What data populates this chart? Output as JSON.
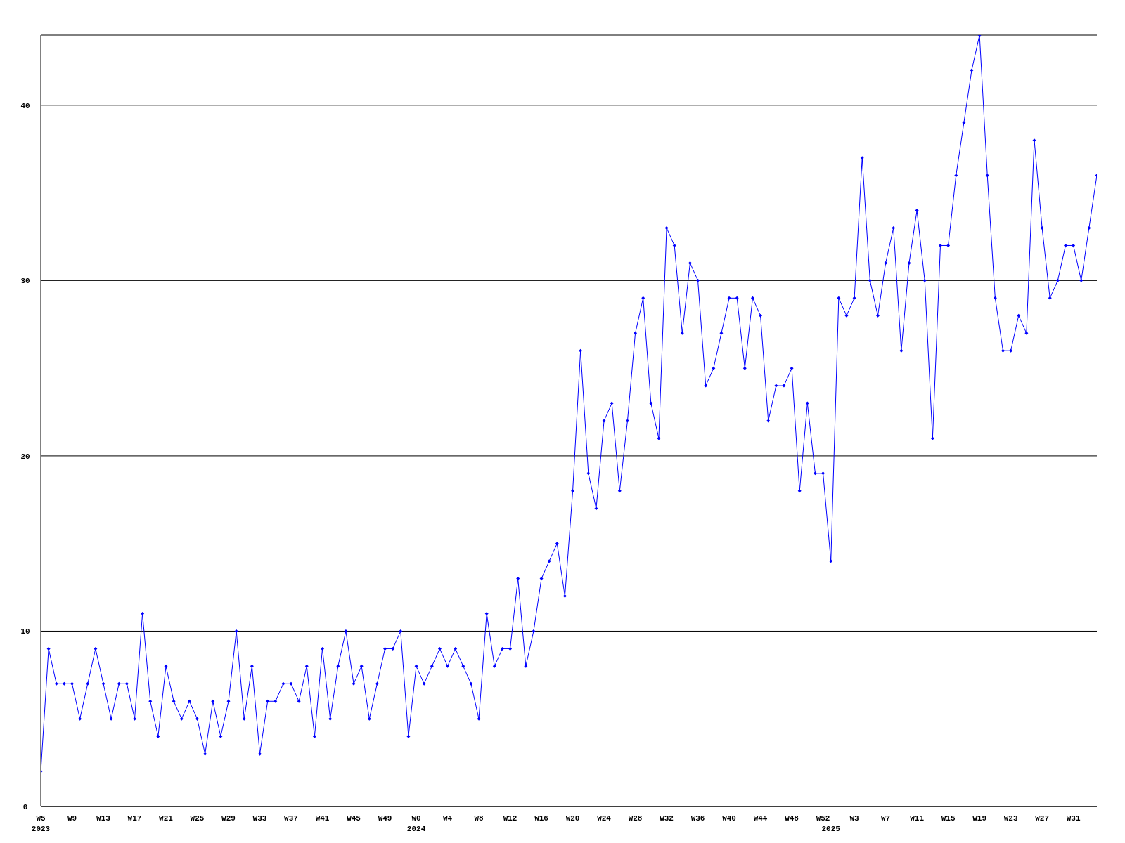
{
  "chart_data": {
    "type": "line",
    "categories": [
      "W5\n2023",
      null,
      null,
      null,
      "W9",
      null,
      null,
      null,
      "W13",
      null,
      null,
      null,
      "W17",
      null,
      null,
      null,
      "W21",
      null,
      null,
      null,
      "W25",
      null,
      null,
      null,
      "W29",
      null,
      null,
      null,
      "W33",
      null,
      null,
      null,
      "W37",
      null,
      null,
      null,
      "W41",
      null,
      null,
      null,
      "W45",
      null,
      null,
      null,
      "W49",
      null,
      null,
      null,
      "W0\n2024",
      null,
      null,
      null,
      "W4",
      null,
      null,
      null,
      "W8",
      null,
      null,
      null,
      "W12",
      null,
      null,
      null,
      "W16",
      null,
      null,
      null,
      "W20",
      null,
      null,
      null,
      "W24",
      null,
      null,
      null,
      "W28",
      null,
      null,
      null,
      "W32",
      null,
      null,
      null,
      "W36",
      null,
      null,
      null,
      "W40",
      null,
      null,
      null,
      "W44",
      null,
      null,
      null,
      "W48",
      null,
      null,
      null,
      "W52",
      "\n2025",
      null,
      null,
      "W3",
      null,
      null,
      null,
      "W7",
      null,
      null,
      null,
      "W11",
      null,
      null,
      null,
      "W15",
      null,
      null,
      null,
      "W19",
      null,
      null,
      null,
      "W23",
      null,
      null,
      null,
      "W27",
      null,
      null,
      null,
      "W31",
      null,
      null,
      null
    ],
    "series": [
      {
        "color": "#0000ff",
        "values": [
          2,
          9,
          7,
          7,
          7,
          5,
          7,
          9,
          7,
          5,
          7,
          7,
          5,
          11,
          6,
          4,
          8,
          6,
          5,
          6,
          5,
          3,
          6,
          4,
          6,
          10,
          5,
          8,
          3,
          6,
          6,
          7,
          7,
          6,
          8,
          4,
          9,
          5,
          8,
          10,
          7,
          8,
          5,
          7,
          9,
          9,
          10,
          4,
          8,
          7,
          8,
          9,
          8,
          9,
          8,
          7,
          5,
          11,
          8,
          9,
          9,
          13,
          8,
          10,
          13,
          14,
          15,
          12,
          18,
          26,
          19,
          17,
          22,
          23,
          18,
          22,
          27,
          29,
          23,
          21,
          33,
          32,
          27,
          31,
          30,
          24,
          25,
          27,
          29,
          29,
          25,
          29,
          28,
          22,
          24,
          24,
          25,
          18,
          23,
          19,
          19,
          14,
          29,
          28,
          29,
          37,
          30,
          28,
          31,
          33,
          26,
          31,
          34,
          30,
          21,
          32,
          32,
          36,
          39,
          42,
          44,
          36,
          29,
          26,
          26,
          28,
          27,
          38,
          33,
          29,
          30,
          32,
          32,
          30,
          33,
          36
        ]
      }
    ],
    "ylim": [
      0,
      44
    ],
    "yticks": [
      0,
      10,
      20,
      30,
      40
    ],
    "grid": "y",
    "marker": "diamond",
    "line_style": "solid"
  }
}
